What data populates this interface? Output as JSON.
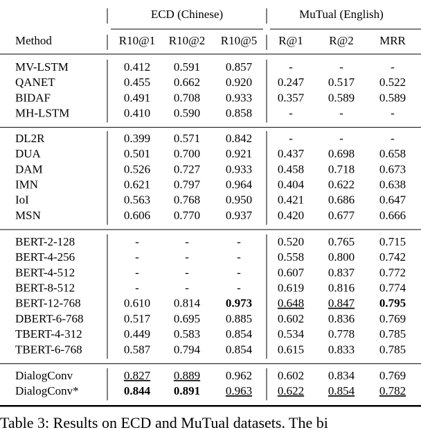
{
  "table": {
    "group_headers": [
      "ECD (Chinese)",
      "MuTual (English)"
    ],
    "columns": [
      "Method",
      "R10@1",
      "R10@2",
      "R10@5",
      "R@1",
      "R@2",
      "MRR"
    ],
    "groups": [
      [
        [
          "MV-LSTM",
          "0.412",
          "0.591",
          "0.857",
          "-",
          "-",
          "-"
        ],
        [
          "QANET",
          "0.455",
          "0.662",
          "0.920",
          "0.247",
          "0.517",
          "0.522"
        ],
        [
          "BIDAF",
          "0.491",
          "0.708",
          "0.933",
          "0.357",
          "0.589",
          "0.589"
        ],
        [
          "MH-LSTM",
          "0.410",
          "0.590",
          "0.858",
          "-",
          "-",
          "-"
        ]
      ],
      [
        [
          "DL2R",
          "0.399",
          "0.571",
          "0.842",
          "-",
          "-",
          "-"
        ],
        [
          "DUA",
          "0.501",
          "0.700",
          "0.921",
          "0.437",
          "0.698",
          "0.658"
        ],
        [
          "DAM",
          "0.526",
          "0.727",
          "0.933",
          "0.458",
          "0.718",
          "0.673"
        ],
        [
          "IMN",
          "0.621",
          "0.797",
          "0.964",
          "0.404",
          "0.622",
          "0.638"
        ],
        [
          "IoI",
          "0.563",
          "0.768",
          "0.950",
          "0.421",
          "0.686",
          "0.647"
        ],
        [
          "MSN",
          "0.606",
          "0.770",
          "0.937",
          "0.420",
          "0.677",
          "0.666"
        ]
      ],
      [
        [
          "BERT-2-128",
          "-",
          "-",
          "-",
          "0.520",
          "0.765",
          "0.715"
        ],
        [
          "BERT-4-256",
          "-",
          "-",
          "-",
          "0.558",
          "0.800",
          "0.742"
        ],
        [
          "BERT-4-512",
          "-",
          "-",
          "-",
          "0.607",
          "0.837",
          "0.772"
        ],
        [
          "BERT-8-512",
          "-",
          "-",
          "-",
          "0.619",
          "0.816",
          "0.774"
        ],
        [
          "BERT-12-768",
          "0.610",
          "0.814",
          "0.973",
          "0.648",
          "0.847",
          "0.795"
        ],
        [
          "DBERT-6-768",
          "0.517",
          "0.695",
          "0.885",
          "0.602",
          "0.836",
          "0.769"
        ],
        [
          "TBERT-4-312",
          "0.449",
          "0.583",
          "0.854",
          "0.534",
          "0.778",
          "0.785"
        ],
        [
          "TBERT-6-768",
          "0.587",
          "0.794",
          "0.854",
          "0.615",
          "0.833",
          "0.785"
        ]
      ],
      [
        [
          "DialogConv",
          "0.827",
          "0.889",
          "0.962",
          "0.602",
          "0.834",
          "0.769"
        ],
        [
          "DialogConv*",
          "0.844",
          "0.891",
          "0.963",
          "0.622",
          "0.854",
          "0.782"
        ]
      ]
    ]
  },
  "caption": "Table 3: Results on ECD and MuTual datasets. The bi"
}
